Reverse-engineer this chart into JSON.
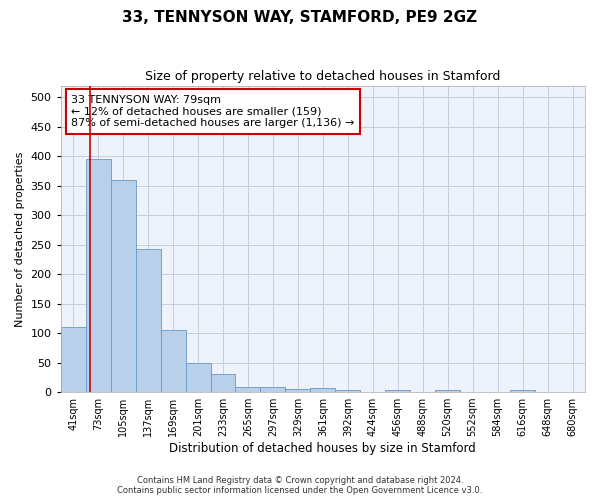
{
  "title1": "33, TENNYSON WAY, STAMFORD, PE9 2GZ",
  "title2": "Size of property relative to detached houses in Stamford",
  "xlabel": "Distribution of detached houses by size in Stamford",
  "ylabel": "Number of detached properties",
  "bin_labels": [
    "41sqm",
    "73sqm",
    "105sqm",
    "137sqm",
    "169sqm",
    "201sqm",
    "233sqm",
    "265sqm",
    "297sqm",
    "329sqm",
    "361sqm",
    "392sqm",
    "424sqm",
    "456sqm",
    "488sqm",
    "520sqm",
    "552sqm",
    "584sqm",
    "616sqm",
    "648sqm",
    "680sqm"
  ],
  "bar_values": [
    110,
    395,
    360,
    243,
    105,
    50,
    30,
    8,
    8,
    5,
    7,
    3,
    0,
    3,
    0,
    3,
    0,
    0,
    3,
    0,
    0
  ],
  "bar_color": "#b8d0ea",
  "bar_edge_color": "#6699cc",
  "ylim": [
    0,
    520
  ],
  "yticks": [
    0,
    50,
    100,
    150,
    200,
    250,
    300,
    350,
    400,
    450,
    500
  ],
  "property_line_x": 0.5,
  "property_line_color": "#cc0000",
  "annotation_text": "33 TENNYSON WAY: 79sqm\n← 12% of detached houses are smaller (159)\n87% of semi-detached houses are larger (1,136) →",
  "annotation_box_color": "#ffffff",
  "annotation_box_edge": "#cc0000",
  "footer_text": "Contains HM Land Registry data © Crown copyright and database right 2024.\nContains public sector information licensed under the Open Government Licence v3.0.",
  "background_color": "#eef2fa",
  "grid_color": "#c8cce0"
}
